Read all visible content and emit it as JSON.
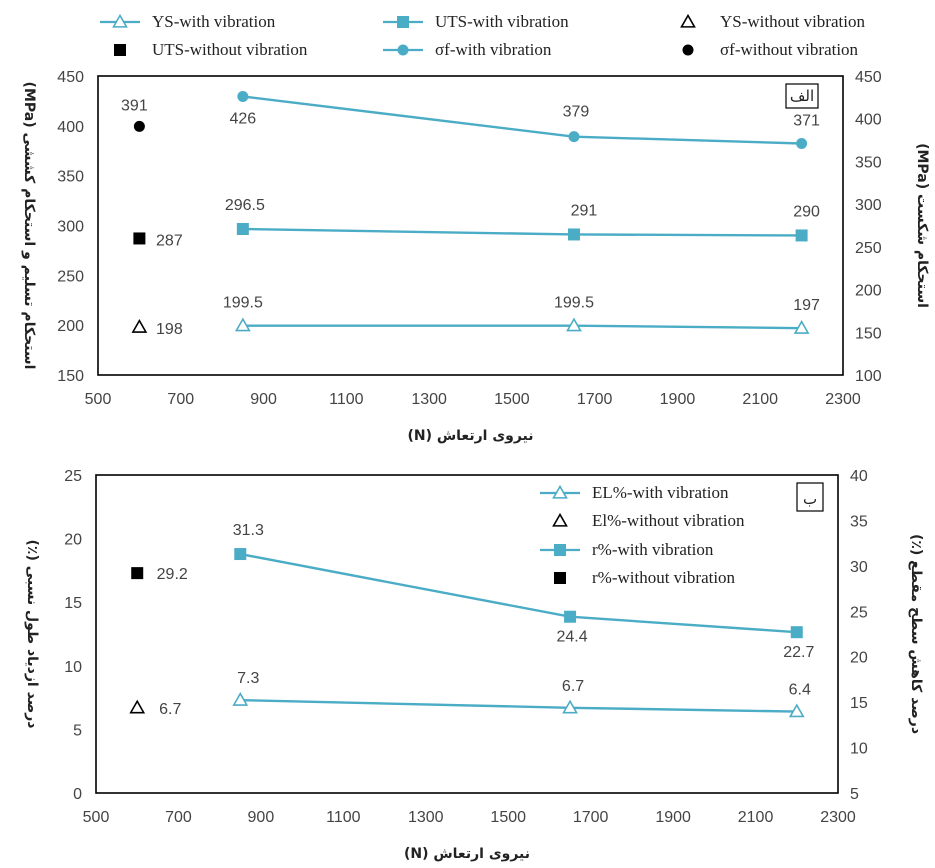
{
  "colors": {
    "series": "#4bacc6",
    "marker_black": "#000000",
    "frame": "#000000",
    "text": "#444444"
  },
  "chart_data": [
    {
      "type": "line",
      "panel_label": "الف",
      "xlabel": "نیروی ارتعاش (N)",
      "ylabel_left": "استحکام تسلیم و استحکام کششی (MPa)",
      "ylabel_right": "استحکام شکست (MPa)",
      "xlim": [
        500,
        2300
      ],
      "ylim_left": [
        150,
        450
      ],
      "ylim_right": [
        100,
        450
      ],
      "x_ticks": [
        "500",
        "700",
        "900",
        "1100",
        "1300",
        "1500",
        "1700",
        "1900",
        "2100",
        "2300"
      ],
      "y_left_ticks": [
        "150",
        "200",
        "250",
        "300",
        "350",
        "400",
        "450"
      ],
      "y_right_ticks": [
        "100",
        "150",
        "200",
        "250",
        "300",
        "350",
        "400",
        "450"
      ],
      "legend": [
        "YS-with vibration",
        "UTS-with vibration",
        "YS-without vibration",
        "UTS-without vibration",
        "σf-with vibration",
        "σf-without vibration"
      ],
      "series": [
        {
          "name": "YS-with vibration",
          "axis": "left",
          "marker": "triangle",
          "color": "#4bacc6",
          "x": [
            850,
            1650,
            2200
          ],
          "y": [
            199.5,
            199.5,
            197
          ],
          "labels": [
            "199.5",
            "199.5",
            "197"
          ]
        },
        {
          "name": "UTS-with vibration",
          "axis": "left",
          "marker": "square",
          "color": "#4bacc6",
          "x": [
            850,
            1650,
            2200
          ],
          "y": [
            296.5,
            291,
            290
          ],
          "labels": [
            "296.5",
            "291",
            "290"
          ]
        },
        {
          "name": "σf-with vibration",
          "axis": "right",
          "marker": "circle",
          "color": "#4bacc6",
          "x": [
            850,
            1650,
            2200
          ],
          "y": [
            426,
            379,
            371
          ],
          "labels": [
            "426",
            "379",
            "371"
          ]
        },
        {
          "name": "YS-without vibration",
          "axis": "left",
          "marker": "triangle-open-black",
          "color": "#000000",
          "x": [
            600
          ],
          "y": [
            198
          ],
          "labels": [
            "198"
          ]
        },
        {
          "name": "UTS-without vibration",
          "axis": "left",
          "marker": "square-black",
          "color": "#000000",
          "x": [
            600
          ],
          "y": [
            287
          ],
          "labels": [
            "287"
          ]
        },
        {
          "name": "σf-without vibration",
          "axis": "right",
          "marker": "circle-black",
          "color": "#000000",
          "x": [
            600
          ],
          "y": [
            391
          ],
          "labels": [
            "391"
          ]
        }
      ]
    },
    {
      "type": "line",
      "panel_label": "ب",
      "xlabel": "نیروی ارتعاش (N)",
      "ylabel_left": "درصد ازدیاد طول نسبی (٪)",
      "ylabel_right": "درصد کاهش سطح مقطع (٪)",
      "xlim": [
        500,
        2300
      ],
      "ylim_left": [
        0,
        25
      ],
      "ylim_right": [
        5,
        40
      ],
      "x_ticks": [
        "500",
        "700",
        "900",
        "1100",
        "1300",
        "1500",
        "1700",
        "1900",
        "2100",
        "2300"
      ],
      "y_left_ticks": [
        "0",
        "5",
        "10",
        "15",
        "20",
        "25"
      ],
      "y_right_ticks": [
        "5",
        "10",
        "15",
        "20",
        "25",
        "30",
        "35",
        "40"
      ],
      "legend": [
        "EL%-with vibration",
        "El%-without vibration",
        "r%-with vibration",
        "r%-without vibration"
      ],
      "series": [
        {
          "name": "EL%-with vibration",
          "axis": "left",
          "marker": "triangle",
          "color": "#4bacc6",
          "x": [
            850,
            1650,
            2200
          ],
          "y": [
            7.3,
            6.7,
            6.4
          ],
          "labels": [
            "7.3",
            "6.7",
            "6.4"
          ]
        },
        {
          "name": "r%-with vibration",
          "axis": "right",
          "marker": "square",
          "color": "#4bacc6",
          "x": [
            850,
            1650,
            2200
          ],
          "y": [
            31.3,
            24.4,
            22.7
          ],
          "labels": [
            "31.3",
            "24.4",
            "22.7"
          ]
        },
        {
          "name": "El%-without vibration",
          "axis": "left",
          "marker": "triangle-open-black",
          "color": "#000000",
          "x": [
            600
          ],
          "y": [
            6.7
          ],
          "labels": [
            "6.7"
          ]
        },
        {
          "name": "r%-without vibration",
          "axis": "right",
          "marker": "square-black",
          "color": "#000000",
          "x": [
            600
          ],
          "y": [
            29.2
          ],
          "labels": [
            "29.2"
          ]
        }
      ]
    }
  ]
}
